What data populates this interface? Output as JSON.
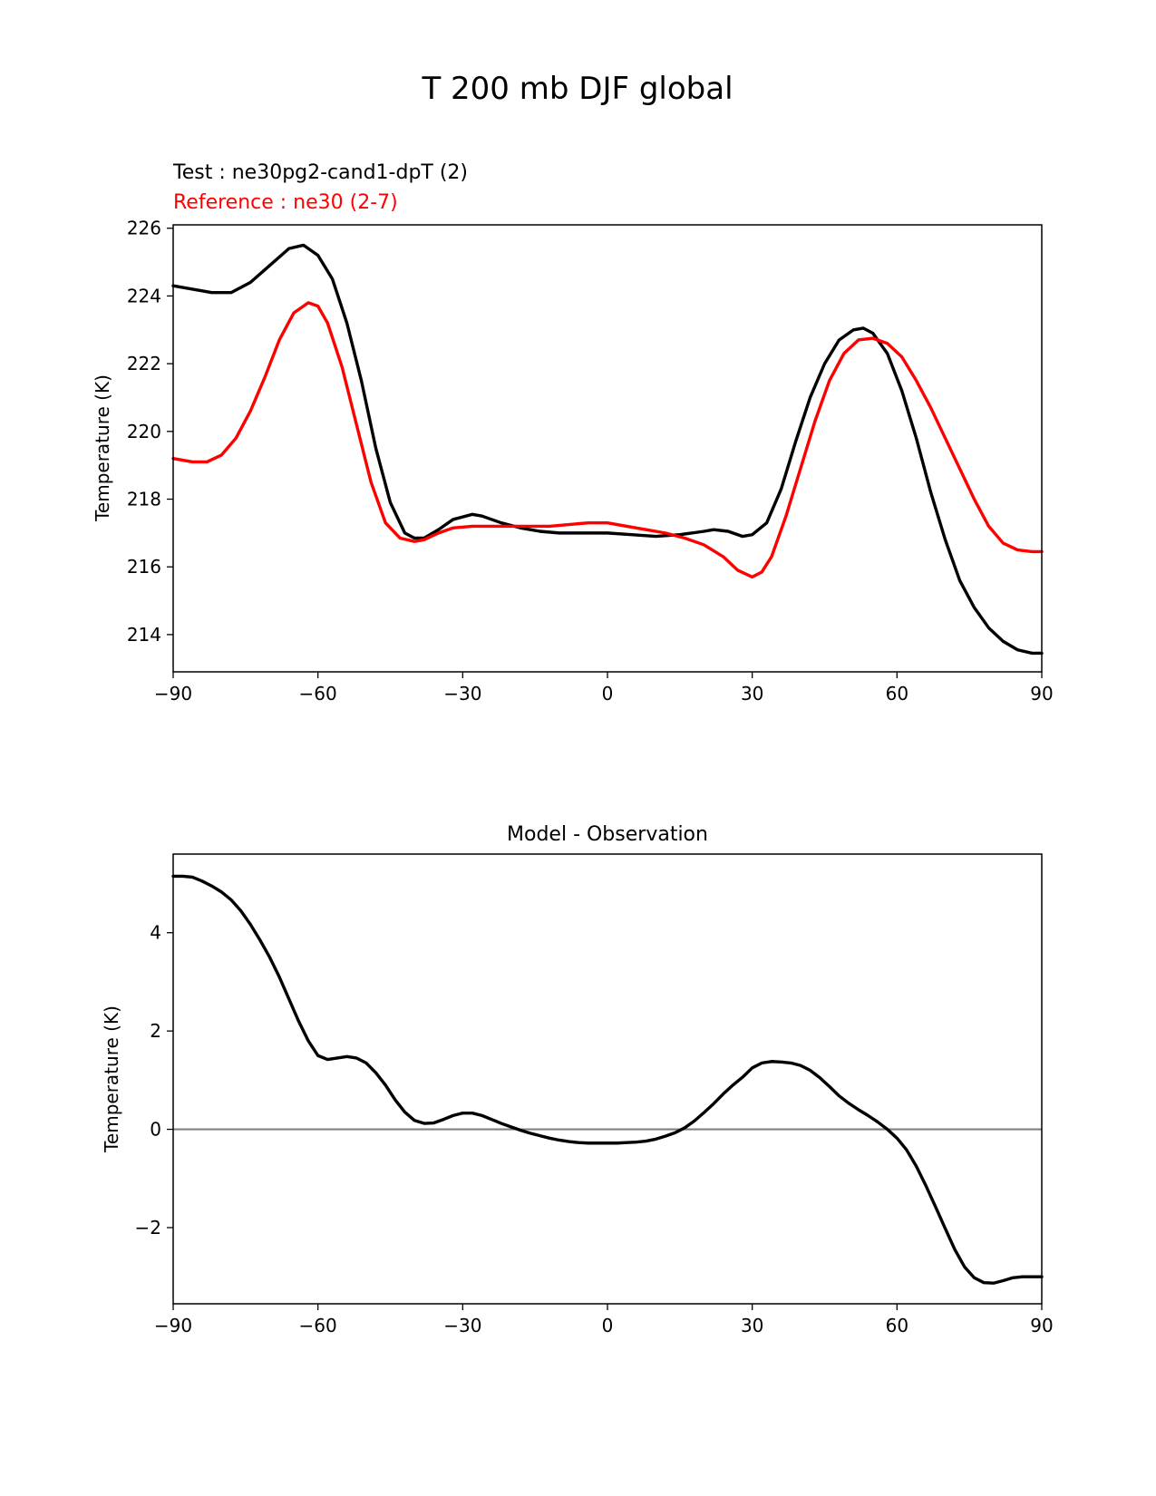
{
  "figure_title": "T 200 mb DJF global",
  "colors": {
    "test": "#000000",
    "reference": "#ff0000",
    "zero_line": "#808080"
  },
  "chart_data": [
    {
      "type": "line",
      "legend": [
        {
          "label": "Test : ne30pg2-cand1-dpT (2)",
          "color": "#000000"
        },
        {
          "label": "Reference : ne30 (2-7)",
          "color": "#ff0000"
        }
      ],
      "xlabel": "",
      "ylabel": "Temperature (K)",
      "xlim": [
        -90,
        90
      ],
      "ylim": [
        212.9,
        226.1
      ],
      "xticks": [
        -90,
        -60,
        -30,
        0,
        30,
        60,
        90
      ],
      "xtick_labels": [
        "−90",
        "−60",
        "−30",
        "0",
        "30",
        "60",
        "90"
      ],
      "yticks": [
        214,
        216,
        218,
        220,
        222,
        224,
        226
      ],
      "ytick_labels": [
        "214",
        "216",
        "218",
        "220",
        "222",
        "224",
        "226"
      ],
      "series": [
        {
          "name": "Test : ne30pg2-cand1-dpT (2)",
          "color": "#000000",
          "x": [
            -90,
            -86,
            -82,
            -78,
            -74,
            -70,
            -66,
            -63,
            -60,
            -57,
            -54,
            -51,
            -48,
            -45,
            -42,
            -40,
            -38,
            -35,
            -32,
            -28,
            -26,
            -22,
            -18,
            -14,
            -10,
            -5,
            0,
            5,
            10,
            15,
            20,
            22,
            25,
            28,
            30,
            33,
            36,
            39,
            42,
            45,
            48,
            51,
            53,
            55,
            58,
            61,
            64,
            67,
            70,
            73,
            76,
            79,
            82,
            85,
            88,
            90
          ],
          "y": [
            224.3,
            224.2,
            224.1,
            224.1,
            224.4,
            224.9,
            225.4,
            225.5,
            225.2,
            224.5,
            223.2,
            221.5,
            219.5,
            217.9,
            217.0,
            216.85,
            216.85,
            217.1,
            217.4,
            217.55,
            217.5,
            217.3,
            217.15,
            217.05,
            217.0,
            217.0,
            217.0,
            216.95,
            216.9,
            216.95,
            217.05,
            217.1,
            217.05,
            216.9,
            216.95,
            217.3,
            218.3,
            219.7,
            221.0,
            222.0,
            222.7,
            223.0,
            223.05,
            222.9,
            222.3,
            221.2,
            219.8,
            218.2,
            216.8,
            215.6,
            214.8,
            214.2,
            213.8,
            213.55,
            213.45,
            213.45
          ]
        },
        {
          "name": "Reference : ne30 (2-7)",
          "color": "#ff0000",
          "x": [
            -90,
            -86,
            -83,
            -80,
            -77,
            -74,
            -71,
            -68,
            -65,
            -62,
            -60,
            -58,
            -55,
            -52,
            -49,
            -46,
            -43,
            -40,
            -38,
            -35,
            -32,
            -28,
            -24,
            -20,
            -16,
            -12,
            -8,
            -4,
            0,
            4,
            8,
            12,
            16,
            20,
            24,
            27,
            30,
            32,
            34,
            37,
            40,
            43,
            46,
            49,
            52,
            55,
            58,
            61,
            64,
            67,
            70,
            73,
            76,
            79,
            82,
            85,
            88,
            90
          ],
          "y": [
            219.2,
            219.1,
            219.1,
            219.3,
            219.8,
            220.6,
            221.6,
            222.7,
            223.5,
            223.8,
            223.7,
            223.2,
            221.9,
            220.2,
            218.5,
            217.3,
            216.85,
            216.75,
            216.8,
            217.0,
            217.15,
            217.2,
            217.2,
            217.2,
            217.2,
            217.2,
            217.25,
            217.3,
            217.3,
            217.2,
            217.1,
            217.0,
            216.85,
            216.65,
            216.3,
            215.9,
            215.7,
            215.85,
            216.3,
            217.5,
            218.9,
            220.3,
            221.5,
            222.3,
            222.7,
            222.75,
            222.6,
            222.2,
            221.5,
            220.7,
            219.8,
            218.9,
            218.0,
            217.2,
            216.7,
            216.5,
            216.45,
            216.45
          ]
        }
      ]
    },
    {
      "type": "line",
      "title": "Model - Observation",
      "xlabel": "",
      "ylabel": "Temperature (K)",
      "xlim": [
        -90,
        90
      ],
      "ylim": [
        -3.55,
        5.6
      ],
      "xticks": [
        -90,
        -60,
        -30,
        0,
        30,
        60,
        90
      ],
      "xtick_labels": [
        "−90",
        "−60",
        "−30",
        "0",
        "30",
        "60",
        "90"
      ],
      "yticks": [
        -2,
        0,
        2,
        4
      ],
      "ytick_labels": [
        "−2",
        "0",
        "2",
        "4"
      ],
      "zero_line": 0,
      "series": [
        {
          "name": "Model - Observation",
          "color": "#000000",
          "x": [
            -90,
            -88,
            -86,
            -84,
            -82,
            -80,
            -78,
            -76,
            -74,
            -72,
            -70,
            -68,
            -66,
            -64,
            -62,
            -60,
            -58,
            -56,
            -54,
            -52,
            -50,
            -48,
            -46,
            -44,
            -42,
            -40,
            -38,
            -36,
            -34,
            -32,
            -30,
            -28,
            -26,
            -24,
            -22,
            -20,
            -18,
            -16,
            -14,
            -12,
            -10,
            -8,
            -6,
            -4,
            -2,
            0,
            2,
            4,
            6,
            8,
            10,
            12,
            14,
            16,
            18,
            20,
            22,
            24,
            26,
            28,
            30,
            32,
            34,
            36,
            38,
            40,
            42,
            44,
            46,
            48,
            50,
            52,
            54,
            56,
            58,
            60,
            62,
            64,
            66,
            68,
            70,
            72,
            74,
            76,
            78,
            80,
            82,
            84,
            86,
            88,
            90
          ],
          "y": [
            5.15,
            5.15,
            5.13,
            5.05,
            4.95,
            4.83,
            4.67,
            4.45,
            4.17,
            3.85,
            3.5,
            3.1,
            2.65,
            2.2,
            1.8,
            1.5,
            1.42,
            1.45,
            1.48,
            1.45,
            1.35,
            1.15,
            0.9,
            0.6,
            0.35,
            0.18,
            0.12,
            0.13,
            0.2,
            0.28,
            0.33,
            0.33,
            0.28,
            0.2,
            0.12,
            0.05,
            -0.02,
            -0.08,
            -0.13,
            -0.18,
            -0.22,
            -0.25,
            -0.27,
            -0.28,
            -0.28,
            -0.28,
            -0.28,
            -0.27,
            -0.26,
            -0.24,
            -0.2,
            -0.14,
            -0.07,
            0.03,
            0.17,
            0.34,
            0.52,
            0.72,
            0.9,
            1.06,
            1.25,
            1.35,
            1.38,
            1.37,
            1.35,
            1.3,
            1.2,
            1.05,
            0.87,
            0.68,
            0.53,
            0.4,
            0.28,
            0.15,
            0.0,
            -0.18,
            -0.42,
            -0.75,
            -1.15,
            -1.58,
            -2.02,
            -2.45,
            -2.8,
            -3.02,
            -3.12,
            -3.13,
            -3.08,
            -3.02,
            -3.0,
            -3.0,
            -3.0
          ]
        }
      ]
    }
  ]
}
